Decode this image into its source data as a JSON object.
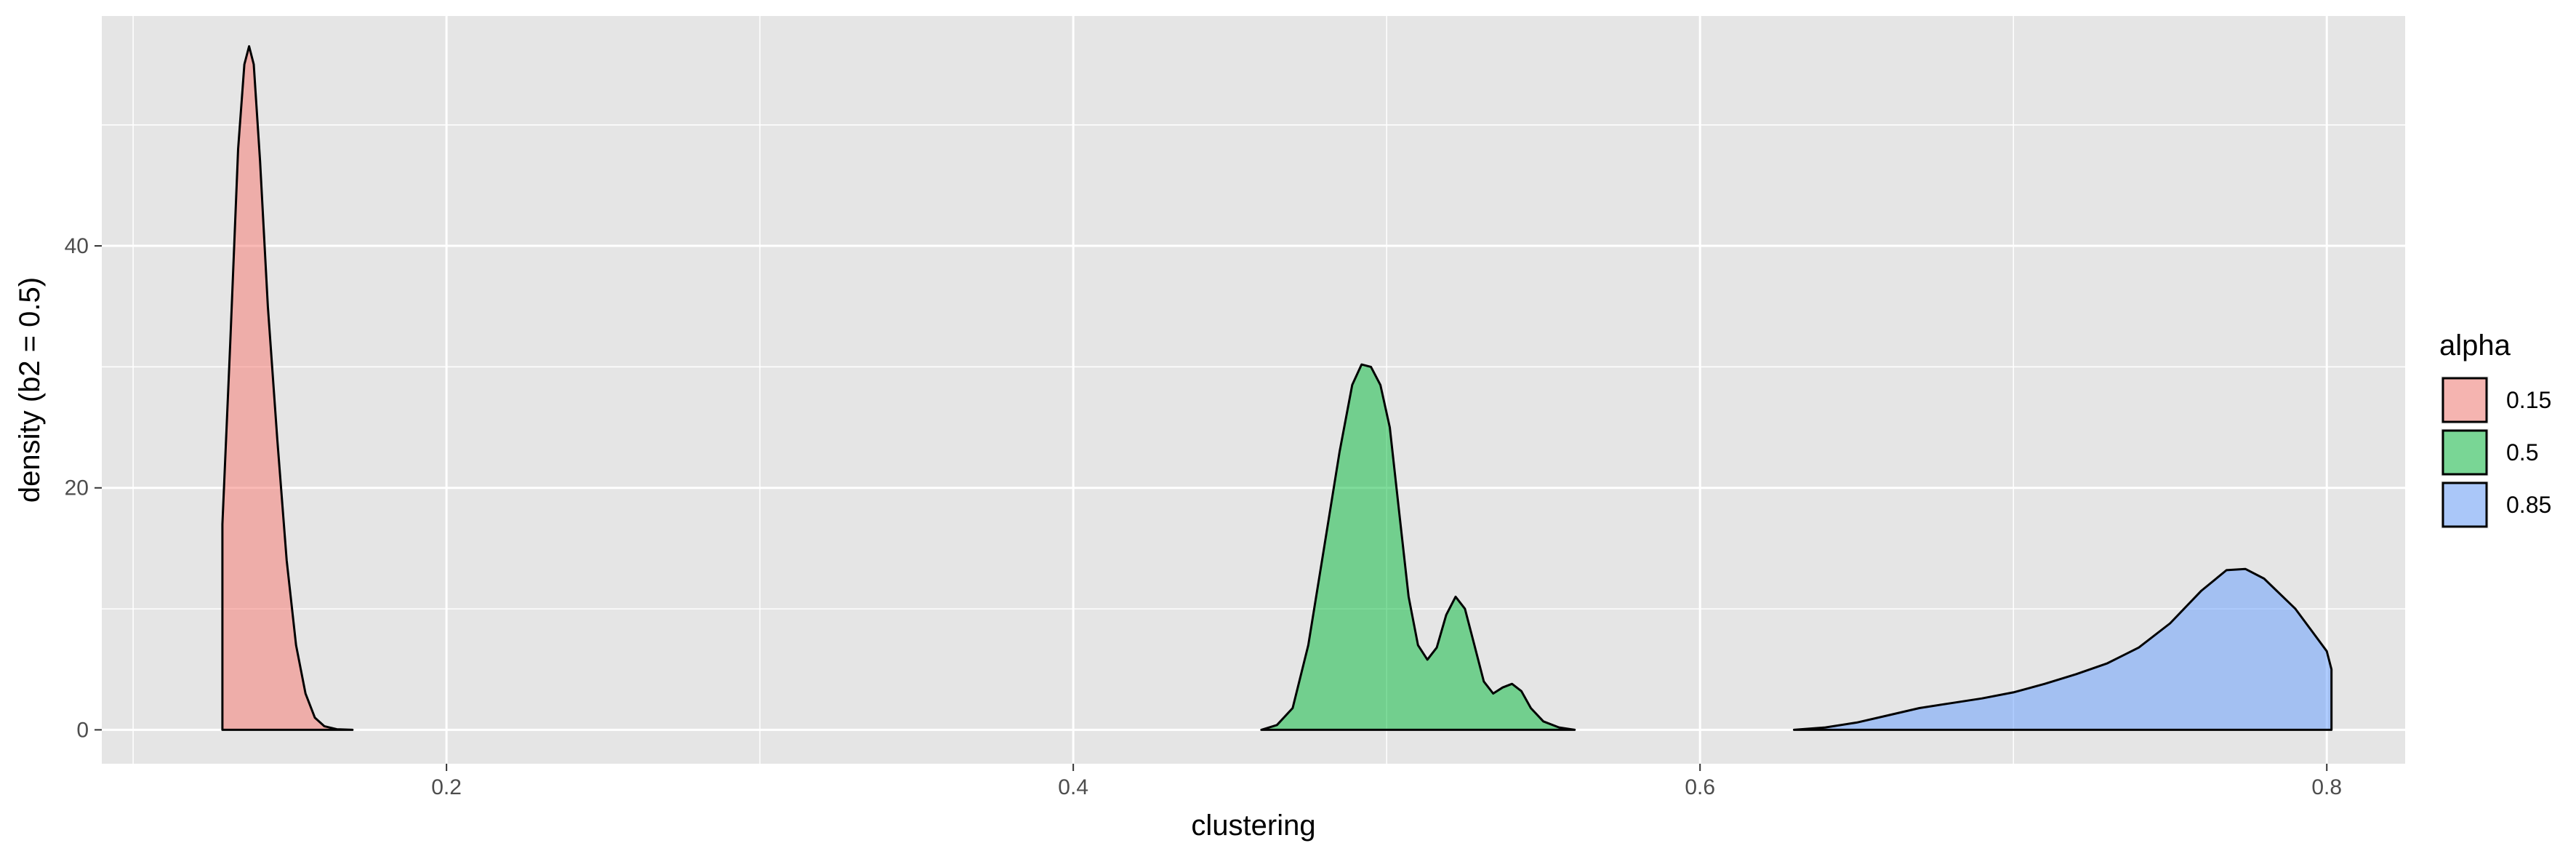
{
  "chart_data": {
    "type": "area",
    "xlabel": "clustering",
    "ylabel": "density (b2 = 0.5)",
    "xlim": [
      0.09,
      0.825
    ],
    "ylim": [
      -2.8,
      59
    ],
    "x_ticks": [
      0.2,
      0.4,
      0.6,
      0.8
    ],
    "x_tick_labels": [
      "0.2",
      "0.4",
      "0.6",
      "0.8"
    ],
    "y_ticks": [
      0,
      20,
      40
    ],
    "y_tick_labels": [
      "0",
      "20",
      "40"
    ],
    "grid": true,
    "legend": {
      "title": "alpha",
      "position": "right",
      "entries": [
        "0.15",
        "0.5",
        "0.85"
      ]
    },
    "series": [
      {
        "name": "0.15",
        "color": "#F8766D",
        "points": [
          [
            0.1285,
            0
          ],
          [
            0.1285,
            17
          ],
          [
            0.131,
            32
          ],
          [
            0.1335,
            48
          ],
          [
            0.1355,
            55
          ],
          [
            0.137,
            56.5
          ],
          [
            0.1385,
            55
          ],
          [
            0.1405,
            47
          ],
          [
            0.143,
            35
          ],
          [
            0.146,
            24
          ],
          [
            0.149,
            14
          ],
          [
            0.152,
            7
          ],
          [
            0.155,
            3
          ],
          [
            0.158,
            1
          ],
          [
            0.161,
            0.3
          ],
          [
            0.165,
            0.05
          ],
          [
            0.17,
            0
          ]
        ]
      },
      {
        "name": "0.5",
        "color": "#00BA38",
        "points": [
          [
            0.46,
            0
          ],
          [
            0.465,
            0.4
          ],
          [
            0.47,
            1.8
          ],
          [
            0.475,
            7
          ],
          [
            0.48,
            15
          ],
          [
            0.485,
            23
          ],
          [
            0.489,
            28.5
          ],
          [
            0.492,
            30.2
          ],
          [
            0.495,
            30
          ],
          [
            0.498,
            28.5
          ],
          [
            0.501,
            25
          ],
          [
            0.504,
            18
          ],
          [
            0.507,
            11
          ],
          [
            0.51,
            7
          ],
          [
            0.513,
            5.8
          ],
          [
            0.516,
            6.8
          ],
          [
            0.519,
            9.5
          ],
          [
            0.522,
            11
          ],
          [
            0.525,
            10
          ],
          [
            0.528,
            7
          ],
          [
            0.531,
            4
          ],
          [
            0.534,
            3
          ],
          [
            0.537,
            3.5
          ],
          [
            0.54,
            3.8
          ],
          [
            0.543,
            3.2
          ],
          [
            0.546,
            1.8
          ],
          [
            0.55,
            0.7
          ],
          [
            0.555,
            0.2
          ],
          [
            0.56,
            0
          ]
        ]
      },
      {
        "name": "0.85",
        "color": "#619CFF",
        "points": [
          [
            0.63,
            0
          ],
          [
            0.64,
            0.2
          ],
          [
            0.65,
            0.6
          ],
          [
            0.66,
            1.2
          ],
          [
            0.67,
            1.8
          ],
          [
            0.68,
            2.2
          ],
          [
            0.69,
            2.6
          ],
          [
            0.7,
            3.1
          ],
          [
            0.71,
            3.8
          ],
          [
            0.72,
            4.6
          ],
          [
            0.73,
            5.5
          ],
          [
            0.74,
            6.8
          ],
          [
            0.75,
            8.8
          ],
          [
            0.76,
            11.5
          ],
          [
            0.768,
            13.2
          ],
          [
            0.774,
            13.3
          ],
          [
            0.78,
            12.5
          ],
          [
            0.79,
            10
          ],
          [
            0.8,
            6.5
          ],
          [
            0.8015,
            5
          ],
          [
            0.8015,
            0
          ]
        ]
      }
    ]
  }
}
